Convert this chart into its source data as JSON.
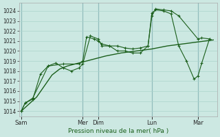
{
  "background_color": "#cce8e2",
  "grid_color": "#aad4cc",
  "line_color": "#1a5e1a",
  "xlabel": "Pression niveau de la mer( hPa )",
  "ylim": [
    1013.5,
    1024.8
  ],
  "ytick_vals": [
    1014,
    1015,
    1016,
    1017,
    1018,
    1019,
    1020,
    1021,
    1022,
    1023,
    1024
  ],
  "day_labels": [
    "Sam",
    "Mer",
    "Dim",
    "Lun",
    "Mar"
  ],
  "day_x": [
    0,
    8,
    10,
    17,
    23
  ],
  "xmin": -0.3,
  "xmax": 25.5,
  "line1_x": [
    0,
    0.5,
    1.5,
    2.5,
    3.5,
    4.5,
    5.5,
    6.5,
    7.5,
    8.0,
    9.0,
    10.0,
    10.5,
    11.5,
    12.5,
    13.5,
    14.5,
    15.5,
    16.5,
    17.0,
    17.5,
    18.5,
    19.5,
    20.5,
    21.5,
    22.5,
    23.0,
    23.5,
    24.5
  ],
  "line1_y": [
    1014.0,
    1014.8,
    1015.2,
    1017.7,
    1018.5,
    1018.8,
    1018.3,
    1018.0,
    1018.3,
    1018.7,
    1021.5,
    1021.2,
    1020.5,
    1020.5,
    1020.0,
    1020.0,
    1019.8,
    1019.8,
    1020.5,
    1023.8,
    1024.1,
    1024.0,
    1023.7,
    1020.5,
    1019.0,
    1017.2,
    1017.5,
    1018.8,
    1021.2
  ],
  "line2_x": [
    0,
    0.5,
    1.5,
    3.5,
    5.5,
    7.5,
    8.0,
    8.5,
    9.5,
    10.0,
    10.5,
    11.5,
    12.5,
    13.5,
    14.5,
    15.5,
    16.5,
    17.0,
    17.5,
    18.5,
    19.5,
    20.5,
    23.0,
    23.5,
    24.5
  ],
  "line2_y": [
    1014.0,
    1014.8,
    1015.3,
    1018.5,
    1018.7,
    1018.7,
    1019.0,
    1021.4,
    1021.2,
    1021.0,
    1020.7,
    1020.5,
    1020.5,
    1020.3,
    1020.2,
    1020.3,
    1020.5,
    1023.5,
    1024.2,
    1024.1,
    1024.0,
    1023.5,
    1021.2,
    1021.3,
    1021.2
  ],
  "line3_x": [
    0,
    1,
    2,
    3,
    4,
    5,
    6,
    7,
    8,
    9,
    10,
    11,
    12,
    13,
    14,
    15,
    16,
    17,
    18,
    19,
    20,
    21,
    22,
    23,
    24,
    25
  ],
  "line3_y": [
    1014.0,
    1014.7,
    1015.4,
    1016.5,
    1017.6,
    1018.2,
    1018.5,
    1018.7,
    1018.9,
    1019.1,
    1019.3,
    1019.5,
    1019.65,
    1019.8,
    1019.9,
    1020.0,
    1020.1,
    1020.2,
    1020.35,
    1020.5,
    1020.6,
    1020.7,
    1020.8,
    1020.9,
    1021.0,
    1021.1
  ]
}
